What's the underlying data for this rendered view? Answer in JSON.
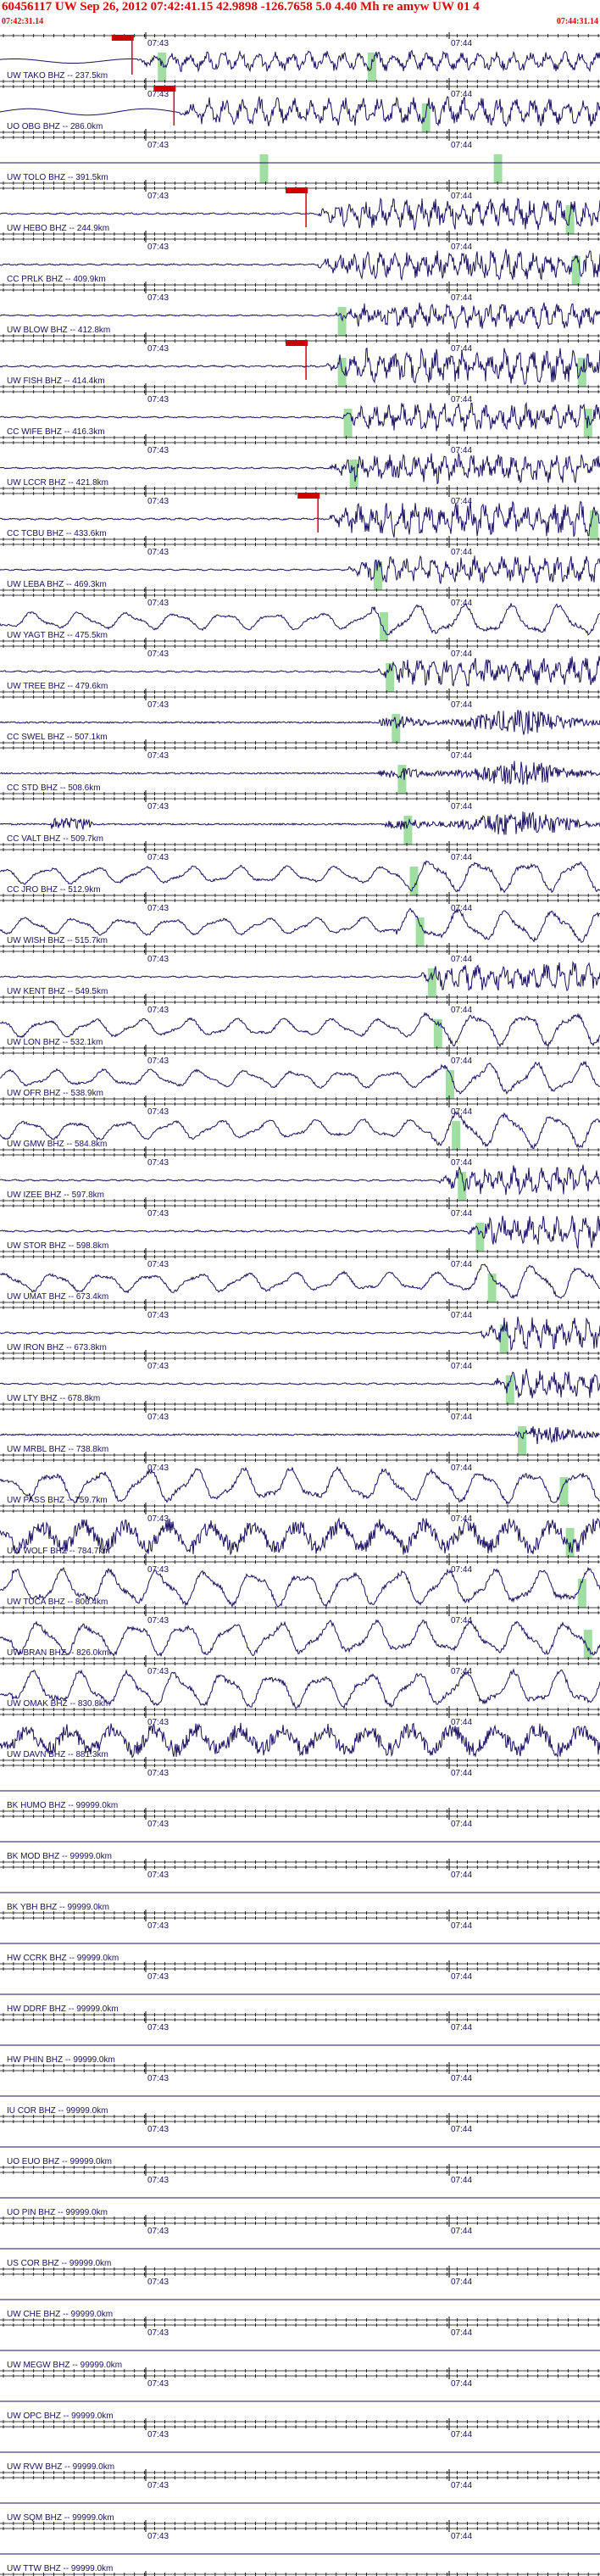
{
  "header": {
    "title": "60456117 UW Sep 26, 2012 07:42:41.15   42.9898 -126.7658  5.0 4.40 Mh re amyw UW 01   4",
    "start_time": "07:42:31.14",
    "end_time": "07:44:31.14"
  },
  "tick_labels": [
    "07:43",
    "07:44"
  ],
  "colors": {
    "trace": "#1a1060",
    "label": "#1a1060",
    "pick": "#dd0000",
    "pick_box": "#cc0000",
    "phase_marker": "#90d890",
    "header": "#e00000"
  },
  "traces": [
    {
      "label": "UW TAKO BHZ -- 237.5km",
      "has_data": true,
      "onset": 0.23,
      "amp": 0.55,
      "style": "medium",
      "pick": 0.22,
      "green": [
        0.27,
        0.62
      ]
    },
    {
      "label": "UO OBG BHZ -- 286.0km",
      "has_data": true,
      "onset": 0.3,
      "amp": 0.8,
      "style": "medium",
      "pick": 0.29,
      "green": [
        0.71
      ]
    },
    {
      "label": "UW TOLO BHZ -- 391.5km",
      "has_data": false,
      "green": [
        0.44,
        0.83
      ]
    },
    {
      "label": "UW HEBO BHZ -- 244.9km",
      "has_data": true,
      "onset": 0.53,
      "amp": 0.85,
      "style": "fast",
      "pick": 0.51,
      "green": [
        0.95
      ]
    },
    {
      "label": "CC PRLK BHZ -- 409.9km",
      "has_data": true,
      "onset": 0.53,
      "amp": 0.8,
      "style": "fast",
      "green": [
        0.96
      ]
    },
    {
      "label": "UW BLOW BHZ -- 412.8km",
      "has_data": true,
      "onset": 0.56,
      "amp": 0.7,
      "style": "fast",
      "green": [
        0.57
      ]
    },
    {
      "label": "UW FISH BHZ -- 414.4km",
      "has_data": true,
      "onset": 0.54,
      "amp": 0.95,
      "style": "fast",
      "pick": 0.51,
      "green": [
        0.57,
        0.97
      ]
    },
    {
      "label": "CC WIFE BHZ -- 416.3km",
      "has_data": true,
      "onset": 0.57,
      "amp": 0.75,
      "style": "fast",
      "green": [
        0.58,
        0.98
      ]
    },
    {
      "label": "UW LCCR BHZ -- 421.8km",
      "has_data": true,
      "onset": 0.55,
      "amp": 0.8,
      "style": "fast",
      "green": [
        0.59
      ]
    },
    {
      "label": "CC TCBU BHZ -- 433.6km",
      "has_data": true,
      "onset": 0.55,
      "amp": 0.95,
      "style": "fast",
      "pick": 0.53,
      "green": [
        0.99
      ]
    },
    {
      "label": "UW LEBA BHZ -- 469.3km",
      "has_data": true,
      "onset": 0.58,
      "amp": 0.75,
      "style": "fast",
      "green": [
        0.63
      ]
    },
    {
      "label": "UW YAGT BHZ -- 475.5km",
      "has_data": true,
      "onset": 0.62,
      "amp": 0.85,
      "style": "slow",
      "green": [
        0.64
      ]
    },
    {
      "label": "UW TREE BHZ -- 479.6km",
      "has_data": true,
      "onset": 0.63,
      "amp": 0.8,
      "style": "fast",
      "green": [
        0.65
      ]
    },
    {
      "label": "CC SWEL BHZ -- 507.1km",
      "has_data": true,
      "onset": 0.63,
      "amp": 0.85,
      "style": "burst",
      "green": [
        0.66
      ]
    },
    {
      "label": "CC STD BHZ -- 508.6km",
      "has_data": true,
      "onset": 0.63,
      "amp": 0.85,
      "style": "burst",
      "green": [
        0.67
      ]
    },
    {
      "label": "CC VALT BHZ -- 509.7km",
      "has_data": true,
      "onset": 0.64,
      "amp": 0.9,
      "style": "burst",
      "early_burst": 0.12,
      "green": [
        0.68
      ]
    },
    {
      "label": "CC JRO BHZ -- 512.9km",
      "has_data": true,
      "onset": 0.66,
      "amp": 0.85,
      "style": "slow",
      "green": [
        0.69
      ]
    },
    {
      "label": "UW WISH BHZ -- 515.7km",
      "has_data": true,
      "onset": 0.66,
      "amp": 0.85,
      "style": "slow",
      "green": [
        0.7
      ]
    },
    {
      "label": "UW KENT BHZ -- 549.5km",
      "has_data": true,
      "onset": 0.7,
      "amp": 0.8,
      "style": "fast",
      "green": [
        0.72
      ]
    },
    {
      "label": "UW LON BHZ -- 532.1km",
      "has_data": true,
      "onset": 0.7,
      "amp": 0.9,
      "style": "slow",
      "green": [
        0.73
      ]
    },
    {
      "label": "UW OFR BHZ -- 538.9km",
      "has_data": true,
      "onset": 0.72,
      "amp": 0.85,
      "style": "slow",
      "green": [
        0.75
      ]
    },
    {
      "label": "UW GMW BHZ -- 584.8km",
      "has_data": true,
      "onset": 0.72,
      "amp": 0.95,
      "style": "slow",
      "green": [
        0.76
      ]
    },
    {
      "label": "UW IZEE BHZ -- 597.8km",
      "has_data": true,
      "onset": 0.73,
      "amp": 0.8,
      "style": "fast",
      "green": [
        0.77
      ]
    },
    {
      "label": "UW STOR BHZ -- 598.8km",
      "has_data": true,
      "onset": 0.78,
      "amp": 0.9,
      "style": "fast",
      "green": [
        0.8
      ]
    },
    {
      "label": "UW UMAT BHZ -- 673.4km",
      "has_data": true,
      "onset": 0.79,
      "amp": 0.95,
      "style": "slow",
      "green": [
        0.82
      ]
    },
    {
      "label": "UW IRON BHZ -- 673.8km",
      "has_data": true,
      "onset": 0.8,
      "amp": 0.9,
      "style": "fast",
      "green": [
        0.84
      ]
    },
    {
      "label": "UW LTY BHZ -- 678.8km",
      "has_data": true,
      "onset": 0.82,
      "amp": 0.85,
      "style": "fast",
      "green": [
        0.85
      ]
    },
    {
      "label": "UW MRBL BHZ -- 738.8km",
      "has_data": true,
      "onset": 0.86,
      "amp": 0.85,
      "style": "burst",
      "green": [
        0.87
      ]
    },
    {
      "label": "UW PASS BHZ -- 759.7km",
      "has_data": true,
      "onset": 0.05,
      "amp": 0.9,
      "style": "slow",
      "green": [
        0.94
      ]
    },
    {
      "label": "UW WOLF BHZ -- 784.7km",
      "has_data": true,
      "onset": 0.02,
      "amp": 0.95,
      "style": "noisy",
      "green": [
        0.95
      ]
    },
    {
      "label": "UW TUCA BHZ -- 806.4km",
      "has_data": true,
      "onset": 0.02,
      "amp": 0.95,
      "style": "slow",
      "green": [
        0.97
      ]
    },
    {
      "label": "UW BRAN BHZ -- 826.0km",
      "has_data": true,
      "onset": 0.02,
      "amp": 0.9,
      "style": "slow",
      "green": [
        0.98
      ]
    },
    {
      "label": "UW OMAK BHZ -- 830.8km",
      "has_data": true,
      "onset": 0.02,
      "amp": 0.95,
      "style": "slow",
      "green": []
    },
    {
      "label": "UW DAVN BHZ -- 881.3km",
      "has_data": true,
      "onset": 0.02,
      "amp": 0.9,
      "style": "noisy",
      "green": []
    },
    {
      "label": "BK HUMO BHZ -- 99999.0km",
      "has_data": false,
      "green": []
    },
    {
      "label": "BK MOD BHZ -- 99999.0km",
      "has_data": false,
      "green": []
    },
    {
      "label": "BK YBH BHZ -- 99999.0km",
      "has_data": false,
      "green": []
    },
    {
      "label": "HW CCRK BHZ -- 99999.0km",
      "has_data": false,
      "green": []
    },
    {
      "label": "HW DDRF BHZ -- 99999.0km",
      "has_data": false,
      "green": []
    },
    {
      "label": "HW PHIN BHZ -- 99999.0km",
      "has_data": false,
      "green": []
    },
    {
      "label": "IU COR BHZ -- 99999.0km",
      "has_data": false,
      "green": []
    },
    {
      "label": "UO EUO BHZ -- 99999.0km",
      "has_data": false,
      "green": []
    },
    {
      "label": "UO PIN BHZ -- 99999.0km",
      "has_data": false,
      "green": []
    },
    {
      "label": "US COR BHZ -- 99999.0km",
      "has_data": false,
      "green": []
    },
    {
      "label": "UW CHE BHZ -- 99999.0km",
      "has_data": false,
      "green": []
    },
    {
      "label": "UW MEGW BHZ -- 99999.0km",
      "has_data": false,
      "green": []
    },
    {
      "label": "UW OPC BHZ -- 99999.0km",
      "has_data": false,
      "green": []
    },
    {
      "label": "UW RVW BHZ -- 99999.0km",
      "has_data": false,
      "green": []
    },
    {
      "label": "UW SQM BHZ -- 99999.0km",
      "has_data": false,
      "green": []
    },
    {
      "label": "UW TTW BHZ -- 99999.0km",
      "has_data": false,
      "green": []
    }
  ]
}
